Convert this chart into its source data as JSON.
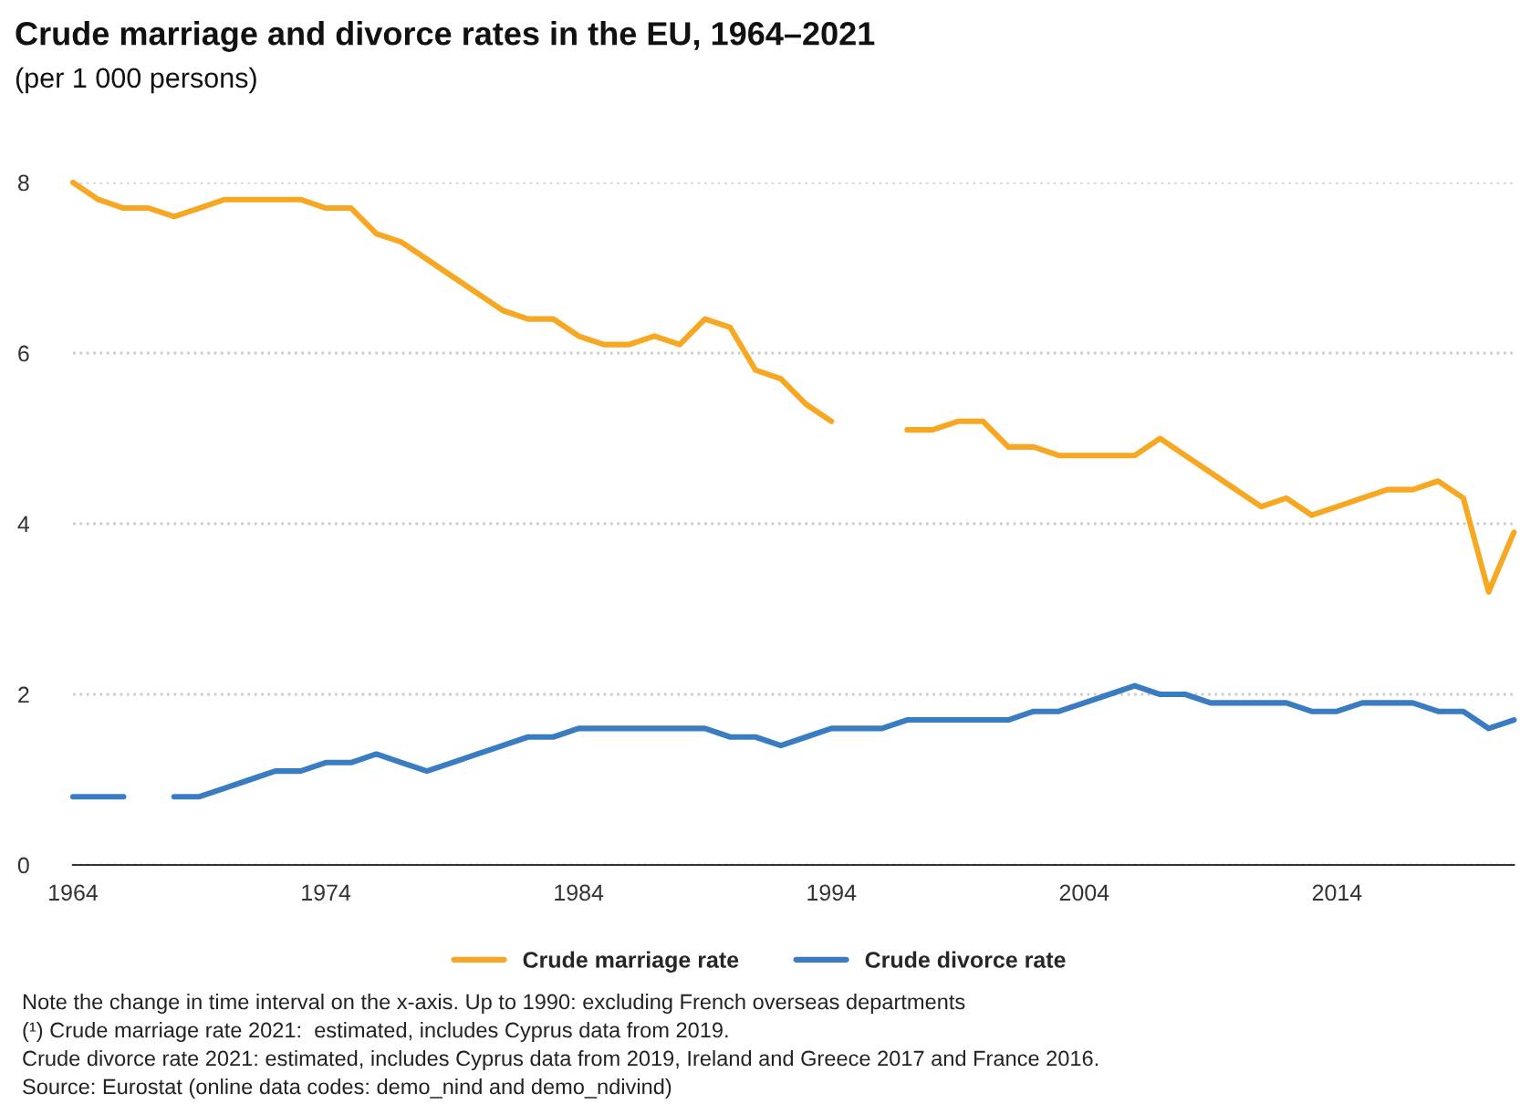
{
  "chart_data": {
    "type": "line",
    "title": "Crude marriage and divorce rates in the EU, 1964–2021",
    "subtitle": "(per 1 000 persons)",
    "x": [
      1964,
      1965,
      1966,
      1967,
      1968,
      1969,
      1970,
      1971,
      1972,
      1973,
      1974,
      1975,
      1976,
      1977,
      1978,
      1979,
      1980,
      1981,
      1982,
      1983,
      1984,
      1985,
      1986,
      1987,
      1988,
      1989,
      1990,
      1991,
      1992,
      1993,
      1994,
      1995,
      1996,
      1997,
      1998,
      1999,
      2000,
      2001,
      2002,
      2003,
      2004,
      2005,
      2006,
      2007,
      2008,
      2009,
      2010,
      2011,
      2012,
      2013,
      2014,
      2015,
      2016,
      2017,
      2018,
      2019,
      2020,
      2021
    ],
    "series": [
      {
        "name": "Crude marriage rate",
        "color": "#f7a823",
        "values": [
          8.0,
          7.8,
          7.7,
          7.7,
          7.6,
          7.7,
          7.8,
          7.8,
          7.8,
          7.8,
          7.7,
          7.7,
          7.4,
          7.3,
          7.1,
          6.9,
          6.7,
          6.5,
          6.4,
          6.4,
          6.2,
          6.1,
          6.1,
          6.2,
          6.1,
          6.4,
          6.3,
          5.8,
          5.7,
          5.4,
          5.2,
          null,
          null,
          5.1,
          5.1,
          5.2,
          5.2,
          4.9,
          4.9,
          4.8,
          4.8,
          4.8,
          4.8,
          5.0,
          4.8,
          4.6,
          4.4,
          4.2,
          4.3,
          4.1,
          4.2,
          4.3,
          4.4,
          4.4,
          4.5,
          4.3,
          3.2,
          3.9
        ]
      },
      {
        "name": "Crude divorce rate",
        "color": "#3a7cc2",
        "values": [
          0.8,
          0.8,
          0.8,
          null,
          0.8,
          0.8,
          0.9,
          1.0,
          1.1,
          1.1,
          1.2,
          1.2,
          1.3,
          1.2,
          1.1,
          1.2,
          1.3,
          1.4,
          1.5,
          1.5,
          1.6,
          1.6,
          1.6,
          1.6,
          1.6,
          1.6,
          1.5,
          1.5,
          1.4,
          1.5,
          1.6,
          1.6,
          1.6,
          1.7,
          1.7,
          1.7,
          1.7,
          1.7,
          1.8,
          1.8,
          1.9,
          2.0,
          2.1,
          2.0,
          2.0,
          1.9,
          1.9,
          1.9,
          1.9,
          1.8,
          1.8,
          1.9,
          1.9,
          1.9,
          1.8,
          1.8,
          1.6,
          1.7
        ]
      }
    ],
    "xlim": [
      1964,
      2021
    ],
    "xticks": [
      1964,
      1974,
      1984,
      1994,
      2004,
      2014
    ],
    "ylim": [
      0,
      8
    ],
    "yticks": [
      0,
      2,
      4,
      6,
      8
    ],
    "grid": "y",
    "legend": "bottom",
    "marker": "none",
    "line_style": "solid",
    "annotations": [
      "Note the change in time interval on the x-axis. Up to 1990: excluding French overseas departments",
      "(¹) Crude marriage rate 2021:  estimated, includes Cyprus data from 2019.",
      "Crude divorce rate 2021: estimated, includes Cyprus data from 2019, Ireland and Greece 2017 and France 2016.",
      "Source: Eurostat (online data codes: demo_nind and demo_ndivind)"
    ]
  }
}
